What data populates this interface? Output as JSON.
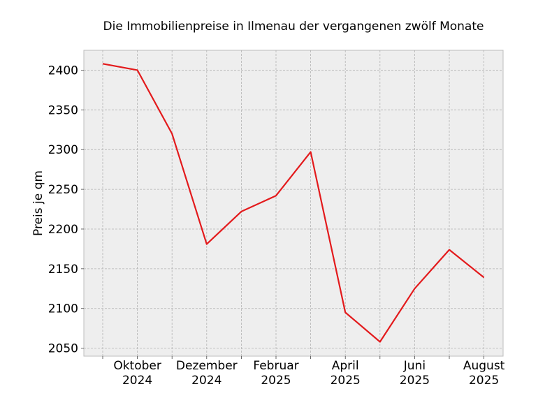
{
  "chart_data": {
    "type": "line",
    "title": "Die Immobilienpreise in Ilmenau der vergangenen zwölf Monate",
    "xlabel": "",
    "ylabel": "Preis je qm",
    "x": [
      "2024-09",
      "2024-10",
      "2024-11",
      "2024-12",
      "2025-01",
      "2025-02",
      "2025-03",
      "2025-04",
      "2025-05",
      "2025-06",
      "2025-07",
      "2025-08"
    ],
    "series": [
      {
        "values": [
          2408,
          2400,
          2320,
          2181,
          2222,
          2242,
          2297,
          2095,
          2058,
          2125,
          2174,
          2139
        ],
        "color": "#e31a1c"
      }
    ],
    "ylim": [
      2040,
      2425
    ],
    "yticks": [
      2050,
      2100,
      2150,
      2200,
      2250,
      2300,
      2350,
      2400
    ],
    "xticks_labeled": [
      {
        "index": 1,
        "line1": "Oktober",
        "line2": "2024"
      },
      {
        "index": 3,
        "line1": "Dezember",
        "line2": "2024"
      },
      {
        "index": 5,
        "line1": "Februar",
        "line2": "2025"
      },
      {
        "index": 7,
        "line1": "April",
        "line2": "2025"
      },
      {
        "index": 9,
        "line1": "Juni",
        "line2": "2025"
      },
      {
        "index": 11,
        "line1": "August",
        "line2": "2025"
      }
    ],
    "grid": true,
    "background": "#eeeeee"
  }
}
